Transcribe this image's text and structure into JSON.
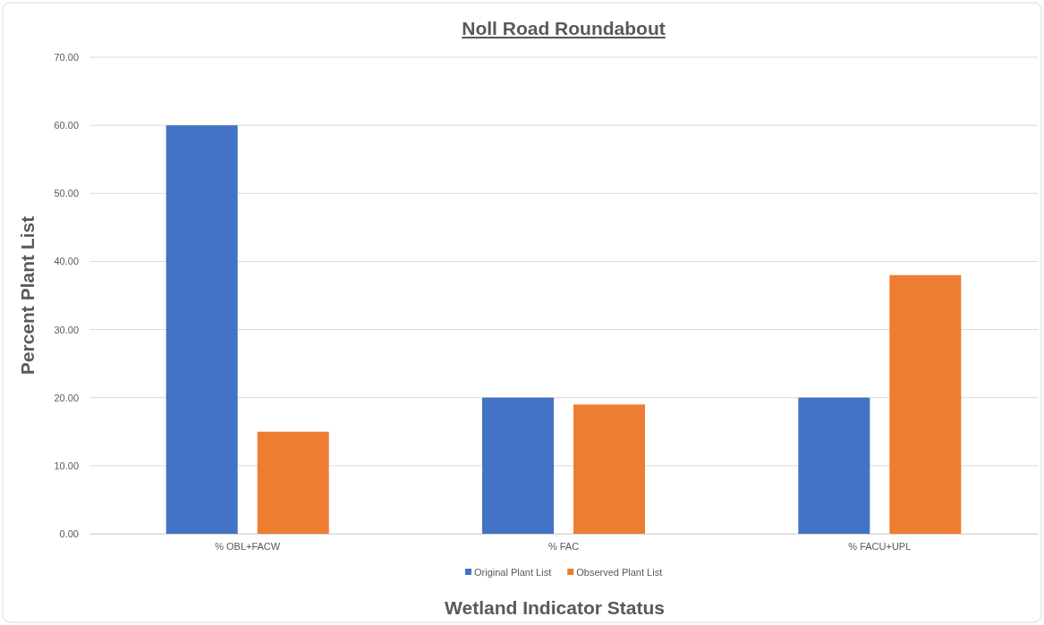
{
  "chart_data": {
    "type": "bar",
    "title": "Noll Road Roundabout",
    "xlabel": "Wetland Indicator Status",
    "ylabel": "Percent Plant List",
    "categories": [
      "% OBL+FACW",
      "% FAC",
      "% FACU+UPL"
    ],
    "series": [
      {
        "name": "Original Plant List",
        "color": "#4472c4",
        "values": [
          60,
          20,
          20
        ]
      },
      {
        "name": "Observed Plant List",
        "color": "#ed7d31",
        "values": [
          15,
          19,
          38
        ]
      }
    ],
    "ylim": [
      0,
      70
    ],
    "yticks": [
      {
        "value": 0,
        "label": "0.00"
      },
      {
        "value": 10,
        "label": "10.00"
      },
      {
        "value": 20,
        "label": "20.00"
      },
      {
        "value": 30,
        "label": "30.00"
      },
      {
        "value": 40,
        "label": "40.00"
      },
      {
        "value": 50,
        "label": "50.00"
      },
      {
        "value": 60,
        "label": "60.00"
      },
      {
        "value": 70,
        "label": "70.00"
      }
    ],
    "grid": "y",
    "legend": "bottom"
  }
}
